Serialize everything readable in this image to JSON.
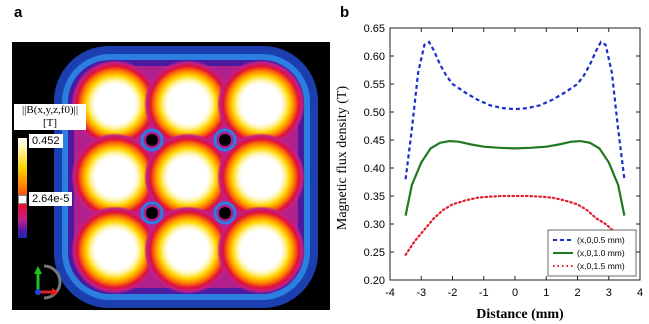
{
  "panels": {
    "a": "a",
    "b": "b"
  },
  "colorbar": {
    "title_line1": "||B(x,y,z,f0)||",
    "title_line2": "[T]",
    "max_label": "0.452",
    "min_label": "2.64e-5"
  },
  "chart_data": {
    "type": "line",
    "xlabel": "Distance (mm)",
    "ylabel": "Magnetic flux density (T)",
    "xlim": [
      -4,
      4
    ],
    "ylim": [
      0.2,
      0.65
    ],
    "xticks": [
      -4,
      -3,
      -2,
      -1,
      0,
      1,
      2,
      3,
      4
    ],
    "yticks": [
      0.2,
      0.25,
      0.3,
      0.35,
      0.4,
      0.45,
      0.5,
      0.55,
      0.6,
      0.65
    ],
    "legend_position": "bottom-right",
    "series": [
      {
        "name": "(x,0,0.5 mm)",
        "style": "dashed",
        "color": "#1a2ecc",
        "x": [
          -3.5,
          -3.3,
          -3.1,
          -2.9,
          -2.75,
          -2.6,
          -2.4,
          -2.2,
          -2.0,
          -1.6,
          -1.2,
          -0.8,
          -0.4,
          0.0,
          0.4,
          0.8,
          1.2,
          1.6,
          2.0,
          2.2,
          2.4,
          2.6,
          2.75,
          2.9,
          3.1,
          3.3,
          3.5
        ],
        "y": [
          0.38,
          0.47,
          0.57,
          0.62,
          0.625,
          0.61,
          0.585,
          0.565,
          0.55,
          0.535,
          0.522,
          0.512,
          0.507,
          0.505,
          0.507,
          0.512,
          0.522,
          0.535,
          0.55,
          0.565,
          0.585,
          0.61,
          0.625,
          0.62,
          0.57,
          0.47,
          0.38
        ]
      },
      {
        "name": "(x,0,1.0 mm)",
        "style": "solid",
        "color": "#1f7a1f",
        "x": [
          -3.5,
          -3.3,
          -3.0,
          -2.7,
          -2.4,
          -2.1,
          -1.8,
          -1.4,
          -1.0,
          -0.5,
          0.0,
          0.5,
          1.0,
          1.4,
          1.8,
          2.1,
          2.4,
          2.7,
          3.0,
          3.3,
          3.5
        ],
        "y": [
          0.315,
          0.37,
          0.41,
          0.435,
          0.445,
          0.448,
          0.447,
          0.442,
          0.438,
          0.436,
          0.435,
          0.436,
          0.438,
          0.442,
          0.447,
          0.448,
          0.445,
          0.435,
          0.41,
          0.37,
          0.315
        ]
      },
      {
        "name": "(x,0,1.5 mm)",
        "style": "dotted",
        "color": "#e0202a",
        "x": [
          -3.5,
          -3.2,
          -2.9,
          -2.6,
          -2.3,
          -2.0,
          -1.6,
          -1.2,
          -0.8,
          -0.4,
          0.0,
          0.4,
          0.8,
          1.2,
          1.6,
          2.0,
          2.3,
          2.6,
          2.9,
          3.1
        ],
        "y": [
          0.245,
          0.27,
          0.29,
          0.31,
          0.325,
          0.335,
          0.342,
          0.347,
          0.349,
          0.35,
          0.35,
          0.35,
          0.349,
          0.347,
          0.342,
          0.335,
          0.325,
          0.31,
          0.3,
          0.29
        ]
      }
    ]
  }
}
